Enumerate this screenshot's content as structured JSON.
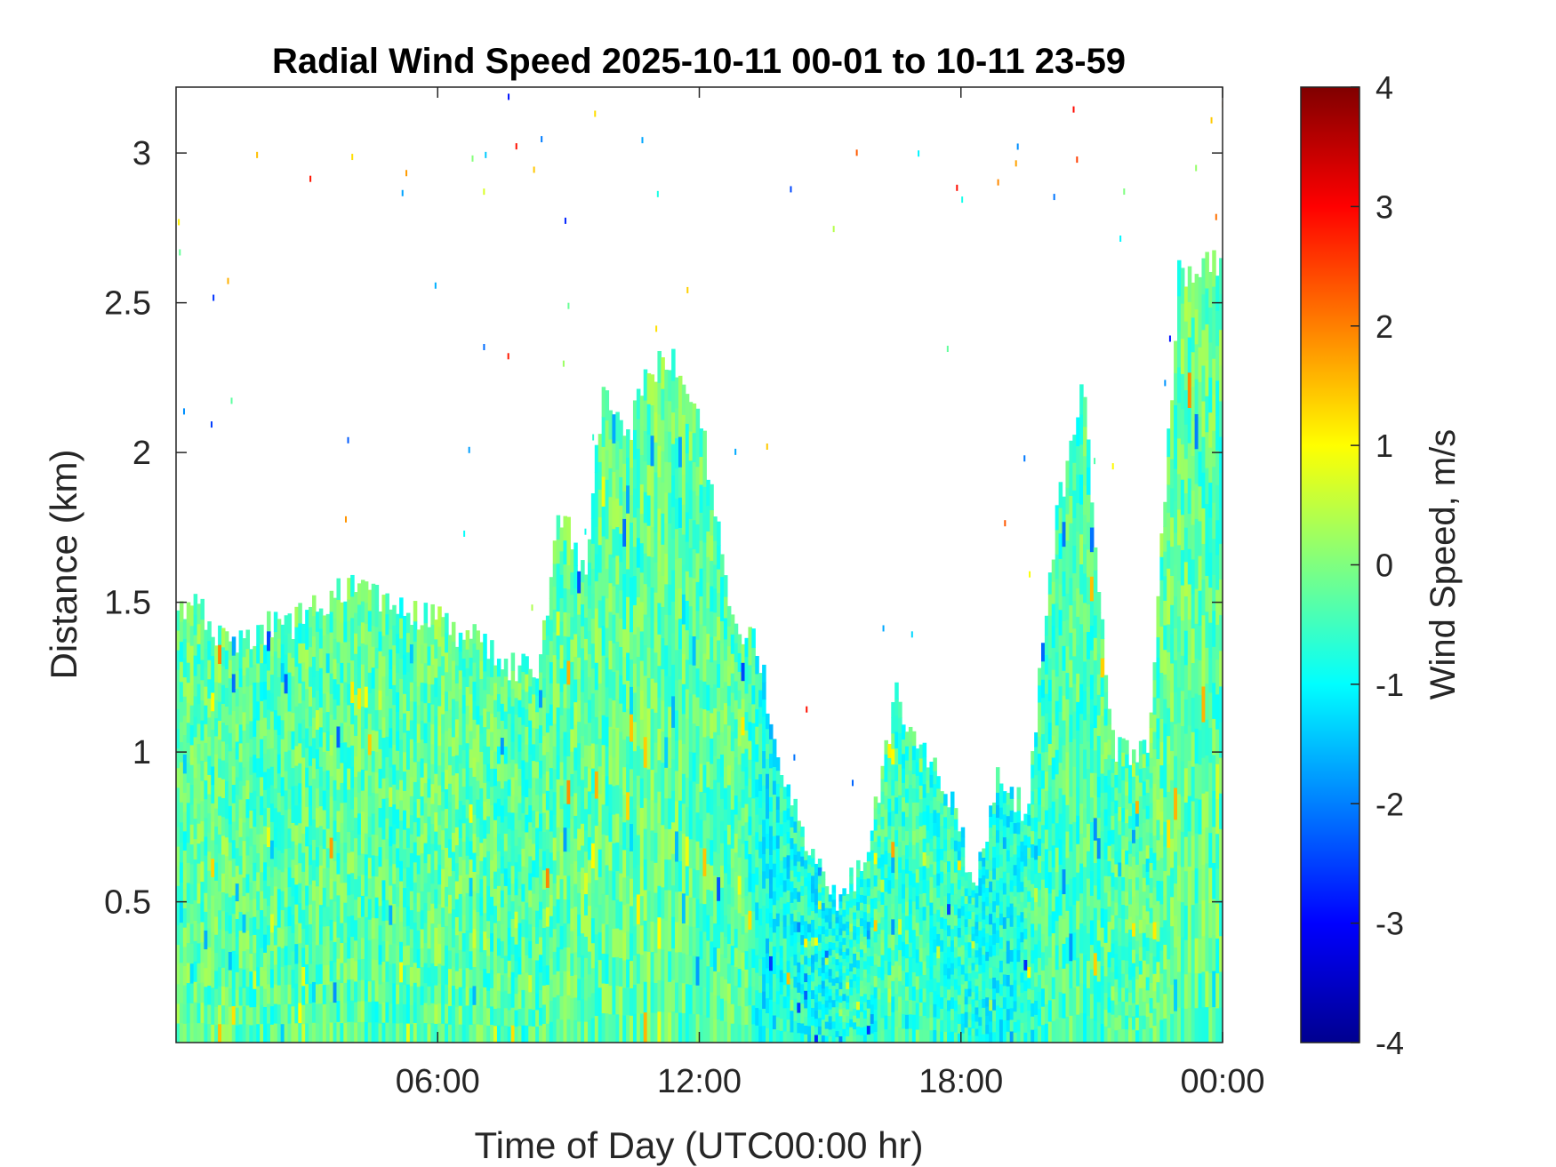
{
  "chart_data": {
    "type": "heatmap",
    "title": "Radial Wind Speed 2025-10-11 00-01 to 10-11 23-59",
    "xlabel": "Time of Day (UTC00:00 hr)",
    "ylabel": "Distance (km)",
    "colorbar_label": "Wind Speed, m/s",
    "colormap": "jet",
    "x_unit": "hours",
    "xlim": [
      0,
      24
    ],
    "ylim": [
      0.03,
      3.22
    ],
    "clim": [
      -4,
      4
    ],
    "x_ticks": [
      {
        "value": 6,
        "label": "06:00"
      },
      {
        "value": 12,
        "label": "12:00"
      },
      {
        "value": 18,
        "label": "18:00"
      },
      {
        "value": 24,
        "label": "00:00"
      }
    ],
    "y_ticks": [
      {
        "value": 0.5,
        "label": "0.5"
      },
      {
        "value": 1,
        "label": "1"
      },
      {
        "value": 1.5,
        "label": "1.5"
      },
      {
        "value": 2,
        "label": "2"
      },
      {
        "value": 2.5,
        "label": "2.5"
      },
      {
        "value": 3,
        "label": "3"
      }
    ],
    "colorbar_ticks": [
      {
        "value": 4,
        "label": "4"
      },
      {
        "value": 3,
        "label": "3"
      },
      {
        "value": 2,
        "label": "2"
      },
      {
        "value": 1,
        "label": "1"
      },
      {
        "value": 0,
        "label": "0"
      },
      {
        "value": -1,
        "label": "-1"
      },
      {
        "value": -2,
        "label": "-2"
      },
      {
        "value": -3,
        "label": "-3"
      },
      {
        "value": -4,
        "label": "-4"
      }
    ],
    "data_top_profile": {
      "time_h": [
        0,
        0.5,
        1.0,
        1.3,
        3.0,
        4.0,
        6.5,
        7.6,
        8.3,
        8.8,
        9.4,
        9.8,
        10.3,
        10.8,
        11.5,
        12.0,
        12.8,
        13.3,
        14.0,
        15.0,
        15.8,
        16.5,
        17.2,
        17.8,
        18.3,
        18.8,
        19.5,
        20.2,
        20.8,
        21.5,
        22.3,
        23.0,
        23.9
      ],
      "top_km": [
        1.45,
        1.5,
        1.38,
        1.38,
        1.45,
        1.55,
        1.4,
        1.3,
        1.25,
        1.8,
        1.6,
        2.25,
        2.0,
        2.28,
        2.3,
        2.15,
        1.4,
        1.35,
        0.9,
        0.5,
        0.6,
        1.2,
        1.0,
        0.85,
        0.55,
        0.9,
        0.8,
        1.8,
        2.2,
        1.0,
        1.0,
        2.6,
        2.65
      ]
    },
    "data_mean_speed": {
      "time_h": [
        0,
        1,
        2,
        3,
        4,
        5,
        6,
        7,
        8,
        9,
        10,
        11,
        12,
        13,
        13.5,
        14,
        15,
        16,
        17,
        18,
        19,
        20,
        21,
        22,
        23,
        24
      ],
      "speed_ms": [
        -0.3,
        -0.2,
        -0.4,
        -0.3,
        -0.3,
        -0.4,
        -0.2,
        -0.3,
        -0.4,
        -0.2,
        -0.3,
        -0.2,
        -0.3,
        -0.3,
        -1.0,
        -0.8,
        -0.9,
        -0.5,
        -0.5,
        -0.7,
        -0.9,
        -0.4,
        -0.4,
        -0.3,
        -0.2,
        -0.3
      ]
    }
  }
}
